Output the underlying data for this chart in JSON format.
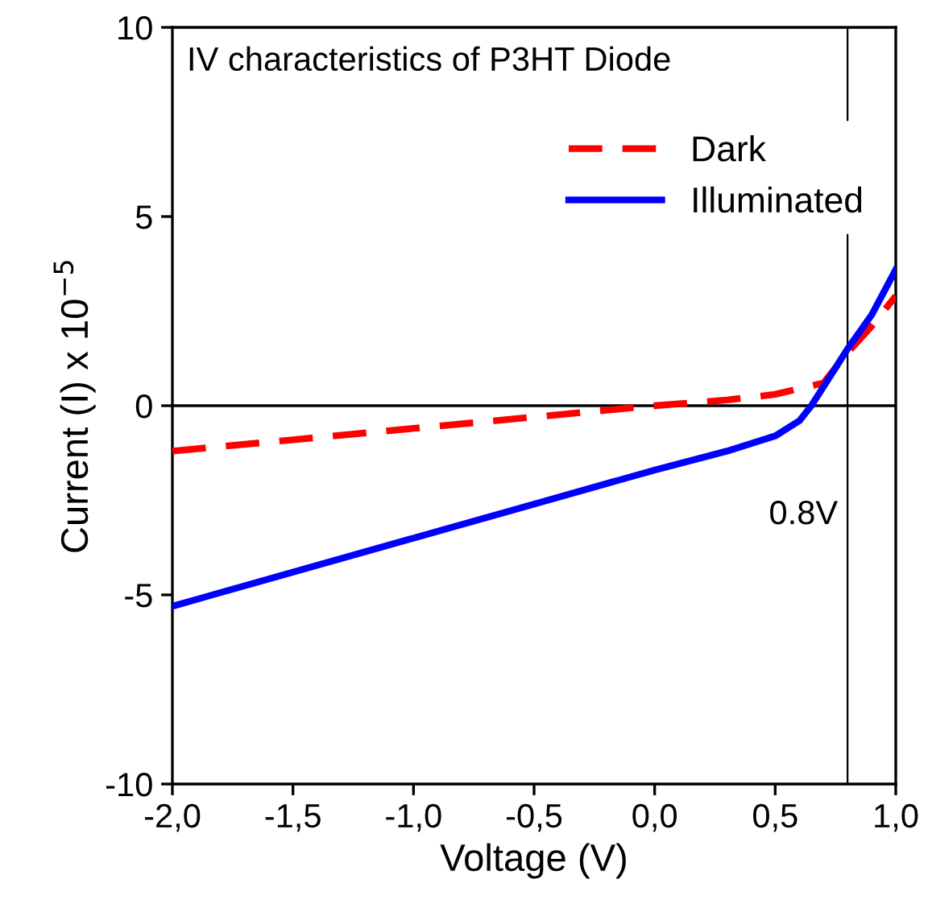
{
  "chart_data": {
    "type": "line",
    "title": "IV characteristics of P3HT Diode",
    "xlabel": "Voltage (V)",
    "ylabel": "Current (I) x 10$^{−5}$",
    "xlim": [
      -2,
      1
    ],
    "ylim": [
      -10,
      10
    ],
    "xticks": [
      {
        "value": -2,
        "label": "-2,0"
      },
      {
        "value": -1.5,
        "label": "-1,5"
      },
      {
        "value": -1,
        "label": "-1,0"
      },
      {
        "value": -0.5,
        "label": "-0,5"
      },
      {
        "value": 0,
        "label": "0,0"
      },
      {
        "value": 0.5,
        "label": "0,5"
      },
      {
        "value": 1,
        "label": "1,0"
      }
    ],
    "yticks": [
      -10,
      -5,
      0,
      5,
      10
    ],
    "legend": "top right",
    "grid": false,
    "series": [
      {
        "name": "Dark",
        "color": "#ff0000",
        "line_style": "dashed",
        "x": [
          -2,
          -1.5,
          -1,
          -0.5,
          0,
          0.3,
          0.5,
          0.7,
          0.8,
          0.9,
          1
        ],
        "values": [
          -1.2,
          -0.9,
          -0.6,
          -0.3,
          0,
          0.15,
          0.3,
          0.6,
          1.4,
          2.1,
          2.9
        ]
      },
      {
        "name": "Illuminated",
        "color": "#0000ff",
        "line_style": "solid",
        "x": [
          -2,
          -1.5,
          -1,
          -0.5,
          0,
          0.3,
          0.5,
          0.6,
          0.65,
          0.7,
          0.8,
          0.9,
          1
        ],
        "values": [
          -5.3,
          -4.4,
          -3.5,
          -2.6,
          -1.7,
          -1.2,
          -0.8,
          -0.4,
          0,
          0.5,
          1.5,
          2.4,
          3.6
        ]
      }
    ],
    "ref_lines": [
      {
        "axis": "y",
        "value": 0,
        "color": "#000000"
      },
      {
        "axis": "x",
        "value": 0.8,
        "label": "0.8V",
        "color": "#000000"
      }
    ]
  }
}
